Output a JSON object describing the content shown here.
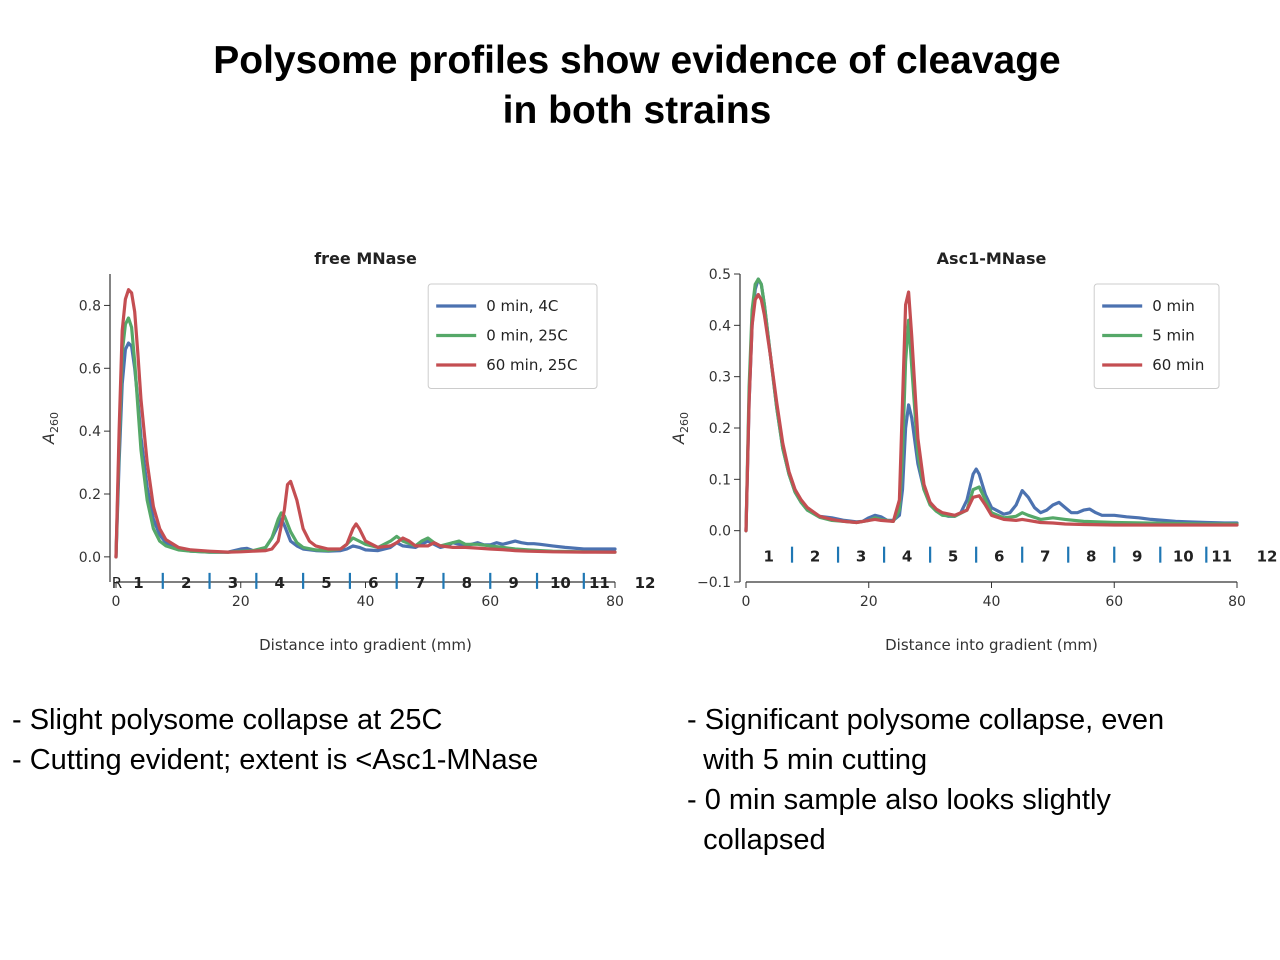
{
  "slide": {
    "title_line1": "Polysome profiles show evidence of cleavage",
    "title_line2": "in both strains"
  },
  "notes_left": [
    "- Slight polysome collapse at 25C",
    "- Cutting evident; extent is <Asc1-MNase"
  ],
  "notes_right": [
    "- Significant polysome collapse, even",
    "  with 5 min cutting",
    "- 0 min sample also looks slightly",
    "  collapsed"
  ],
  "chart_data": [
    {
      "type": "line",
      "title": "free MNase",
      "xlabel": "Distance into gradient (mm)",
      "ylabel": "A260",
      "xlim": [
        0,
        80
      ],
      "ylim": [
        -0.08,
        0.9
      ],
      "xticks": [
        0,
        20,
        40,
        60,
        80
      ],
      "yticks": [
        0.0,
        0.2,
        0.4,
        0.6,
        0.8
      ],
      "yticklabels": [
        "0.0",
        "0.2",
        "0.4",
        "0.6",
        "0.8"
      ],
      "legend_position": "top-right",
      "fraction_labels": [
        "R",
        "1",
        "2",
        "3",
        "4",
        "5",
        "6",
        "7",
        "8",
        "9",
        "10",
        "11",
        "12"
      ],
      "fraction_boundaries": [
        7.5,
        15,
        22.5,
        30,
        37.5,
        45,
        52.5,
        60,
        67.5,
        75
      ],
      "series": [
        {
          "name": "0 min, 4C",
          "color": "#4c72b0",
          "x": [
            0,
            0.5,
            1,
            1.5,
            2,
            2.5,
            3,
            3.5,
            4,
            5,
            6,
            7,
            8,
            10,
            12,
            15,
            18,
            20,
            21,
            22,
            23,
            24,
            25,
            26,
            26.5,
            27,
            28,
            29,
            30,
            32,
            34,
            36,
            37,
            38,
            39,
            40,
            42,
            44,
            45,
            46,
            48,
            49,
            50,
            51,
            52,
            53,
            54,
            55,
            56,
            57,
            58,
            59,
            60,
            61,
            62,
            63,
            64,
            65,
            66,
            67,
            68,
            70,
            72,
            75,
            80
          ],
          "y": [
            0.0,
            0.3,
            0.55,
            0.66,
            0.68,
            0.67,
            0.6,
            0.5,
            0.38,
            0.22,
            0.12,
            0.07,
            0.045,
            0.025,
            0.018,
            0.015,
            0.015,
            0.025,
            0.027,
            0.02,
            0.02,
            0.03,
            0.06,
            0.1,
            0.12,
            0.1,
            0.05,
            0.035,
            0.025,
            0.02,
            0.018,
            0.02,
            0.025,
            0.035,
            0.03,
            0.022,
            0.02,
            0.03,
            0.045,
            0.035,
            0.03,
            0.04,
            0.05,
            0.04,
            0.03,
            0.035,
            0.045,
            0.04,
            0.035,
            0.04,
            0.045,
            0.038,
            0.038,
            0.045,
            0.04,
            0.045,
            0.05,
            0.045,
            0.042,
            0.042,
            0.04,
            0.035,
            0.03,
            0.025,
            0.025
          ]
        },
        {
          "name": "0 min, 25C",
          "color": "#55a868",
          "x": [
            0,
            0.5,
            1,
            1.5,
            2,
            2.5,
            3,
            3.5,
            4,
            5,
            6,
            7,
            8,
            10,
            12,
            15,
            18,
            20,
            22,
            24,
            25,
            26,
            26.5,
            27,
            28,
            29,
            30,
            32,
            34,
            36,
            37,
            38,
            40,
            42,
            44,
            45,
            46,
            48,
            49,
            50,
            51,
            52,
            54,
            55,
            56,
            58,
            60,
            62,
            64,
            66,
            68,
            70,
            75,
            80
          ],
          "y": [
            0.0,
            0.35,
            0.65,
            0.74,
            0.76,
            0.73,
            0.62,
            0.48,
            0.34,
            0.18,
            0.09,
            0.05,
            0.035,
            0.022,
            0.018,
            0.015,
            0.015,
            0.018,
            0.02,
            0.03,
            0.06,
            0.12,
            0.14,
            0.13,
            0.08,
            0.045,
            0.03,
            0.022,
            0.02,
            0.025,
            0.04,
            0.06,
            0.04,
            0.03,
            0.05,
            0.065,
            0.05,
            0.035,
            0.05,
            0.06,
            0.045,
            0.035,
            0.045,
            0.05,
            0.04,
            0.04,
            0.035,
            0.03,
            0.025,
            0.022,
            0.02,
            0.018,
            0.016,
            0.015
          ]
        },
        {
          "name": "60 min, 25C",
          "color": "#c44e52",
          "x": [
            0,
            0.5,
            1,
            1.5,
            2,
            2.5,
            3,
            3.5,
            4,
            5,
            6,
            7,
            8,
            10,
            12,
            15,
            18,
            20,
            22,
            24,
            25,
            26,
            27,
            27.5,
            28,
            29,
            30,
            31,
            32,
            34,
            36,
            37,
            38,
            38.5,
            39,
            40,
            42,
            44,
            45,
            46,
            47,
            48,
            50,
            51,
            52,
            54,
            56,
            58,
            60,
            62,
            64,
            66,
            70,
            75,
            80
          ],
          "y": [
            0.0,
            0.4,
            0.72,
            0.82,
            0.85,
            0.84,
            0.78,
            0.65,
            0.5,
            0.3,
            0.16,
            0.09,
            0.055,
            0.03,
            0.022,
            0.018,
            0.015,
            0.016,
            0.018,
            0.02,
            0.025,
            0.05,
            0.15,
            0.23,
            0.24,
            0.18,
            0.09,
            0.05,
            0.035,
            0.025,
            0.025,
            0.04,
            0.09,
            0.105,
            0.09,
            0.05,
            0.03,
            0.035,
            0.045,
            0.06,
            0.05,
            0.035,
            0.035,
            0.045,
            0.035,
            0.03,
            0.03,
            0.028,
            0.025,
            0.023,
            0.02,
            0.018,
            0.016,
            0.015,
            0.015
          ]
        }
      ]
    },
    {
      "type": "line",
      "title": "Asc1-MNase",
      "xlabel": "Distance into gradient (mm)",
      "ylabel": "A260",
      "xlim": [
        0,
        80
      ],
      "ylim": [
        -0.1,
        0.5
      ],
      "xticks": [
        0,
        20,
        40,
        60,
        80
      ],
      "yticks": [
        -0.1,
        0.0,
        0.1,
        0.2,
        0.3,
        0.4,
        0.5
      ],
      "yticklabels": [
        "−0.1",
        "0.0",
        "0.1",
        "0.2",
        "0.3",
        "0.4",
        "0.5"
      ],
      "legend_position": "top-right",
      "fraction_labels": [
        "1",
        "2",
        "3",
        "4",
        "5",
        "6",
        "7",
        "8",
        "9",
        "10",
        "11",
        "12"
      ],
      "fraction_boundaries": [
        7.5,
        15,
        22.5,
        30,
        37.5,
        45,
        52.5,
        60,
        67.5,
        75
      ],
      "series": [
        {
          "name": "0 min",
          "color": "#4c72b0",
          "x": [
            0,
            0.5,
            1,
            1.5,
            2,
            2.5,
            3,
            4,
            5,
            6,
            7,
            8,
            9,
            10,
            12,
            14,
            16,
            18,
            19,
            20,
            21,
            22,
            23,
            24,
            25,
            25.5,
            26,
            26.5,
            27,
            28,
            29,
            30,
            31,
            32,
            33,
            34,
            35,
            36,
            37,
            37.5,
            38,
            39,
            40,
            42,
            43,
            44,
            45,
            46,
            47,
            48,
            49,
            50,
            51,
            52,
            53,
            54,
            55,
            56,
            57,
            58,
            60,
            62,
            64,
            66,
            68,
            70,
            72,
            75,
            78,
            80
          ],
          "y": [
            0.0,
            0.25,
            0.4,
            0.47,
            0.49,
            0.48,
            0.44,
            0.34,
            0.24,
            0.16,
            0.11,
            0.075,
            0.055,
            0.04,
            0.028,
            0.025,
            0.02,
            0.017,
            0.018,
            0.025,
            0.03,
            0.027,
            0.02,
            0.02,
            0.03,
            0.08,
            0.2,
            0.245,
            0.22,
            0.13,
            0.08,
            0.055,
            0.04,
            0.032,
            0.028,
            0.028,
            0.035,
            0.06,
            0.11,
            0.12,
            0.11,
            0.07,
            0.045,
            0.032,
            0.035,
            0.05,
            0.078,
            0.065,
            0.045,
            0.035,
            0.04,
            0.05,
            0.055,
            0.045,
            0.035,
            0.035,
            0.04,
            0.042,
            0.035,
            0.03,
            0.03,
            0.027,
            0.025,
            0.022,
            0.02,
            0.018,
            0.017,
            0.016,
            0.015,
            0.015
          ]
        },
        {
          "name": "5 min",
          "color": "#55a868",
          "x": [
            0,
            0.5,
            1,
            1.5,
            2,
            2.5,
            3,
            4,
            5,
            6,
            7,
            8,
            9,
            10,
            12,
            14,
            16,
            18,
            20,
            21,
            22,
            24,
            25,
            25.5,
            26,
            26.5,
            27,
            28,
            29,
            30,
            31,
            32,
            34,
            36,
            37,
            38,
            39,
            40,
            42,
            44,
            45,
            46,
            48,
            50,
            52,
            55,
            60,
            65,
            70,
            75,
            80
          ],
          "y": [
            0.0,
            0.28,
            0.43,
            0.48,
            0.49,
            0.48,
            0.44,
            0.34,
            0.24,
            0.16,
            0.11,
            0.075,
            0.055,
            0.04,
            0.026,
            0.02,
            0.018,
            0.016,
            0.02,
            0.025,
            0.022,
            0.018,
            0.04,
            0.15,
            0.33,
            0.41,
            0.32,
            0.15,
            0.08,
            0.05,
            0.038,
            0.03,
            0.028,
            0.04,
            0.08,
            0.085,
            0.06,
            0.035,
            0.025,
            0.028,
            0.035,
            0.03,
            0.022,
            0.025,
            0.022,
            0.018,
            0.016,
            0.015,
            0.014,
            0.013,
            0.013
          ]
        },
        {
          "name": "60 min",
          "color": "#c44e52",
          "x": [
            0,
            0.5,
            1,
            1.5,
            2,
            2.5,
            3,
            4,
            5,
            6,
            7,
            8,
            9,
            10,
            12,
            14,
            16,
            18,
            20,
            21,
            22,
            24,
            25,
            25.5,
            26,
            26.5,
            27,
            28,
            29,
            30,
            31,
            32,
            34,
            36,
            37,
            38,
            39,
            40,
            42,
            44,
            45,
            46,
            48,
            50,
            52,
            55,
            60,
            65,
            70,
            75,
            80
          ],
          "y": [
            0.0,
            0.25,
            0.4,
            0.45,
            0.46,
            0.45,
            0.42,
            0.34,
            0.25,
            0.17,
            0.115,
            0.08,
            0.06,
            0.045,
            0.028,
            0.022,
            0.018,
            0.016,
            0.02,
            0.022,
            0.02,
            0.018,
            0.06,
            0.25,
            0.44,
            0.465,
            0.38,
            0.18,
            0.09,
            0.055,
            0.042,
            0.035,
            0.03,
            0.04,
            0.065,
            0.068,
            0.05,
            0.03,
            0.022,
            0.02,
            0.022,
            0.02,
            0.016,
            0.015,
            0.013,
            0.012,
            0.011,
            0.011,
            0.011,
            0.011,
            0.011
          ]
        }
      ]
    }
  ]
}
